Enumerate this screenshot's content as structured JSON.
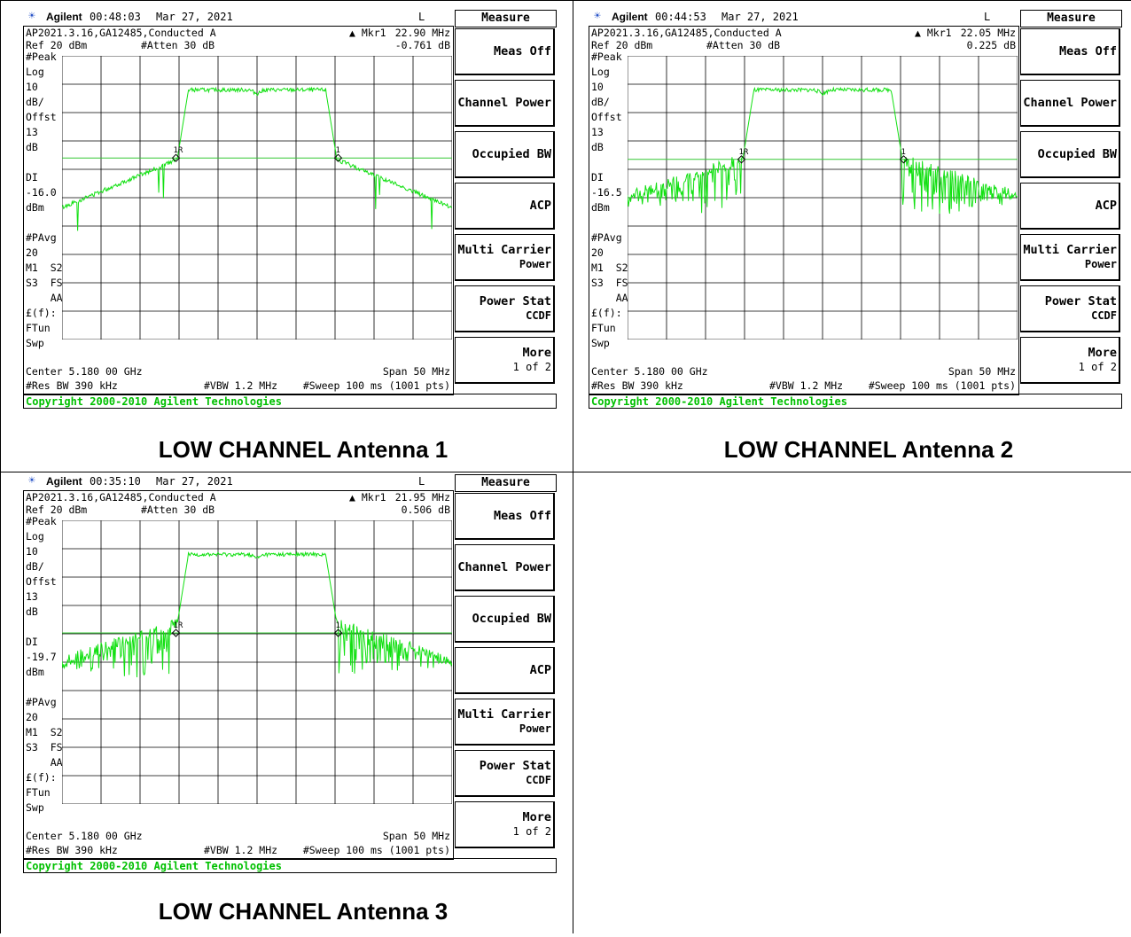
{
  "document": {
    "colors": {
      "trace": "#11e011",
      "display_line": "#33c733",
      "grid": "#000000",
      "copyright": "#00c000",
      "logo": "#2a55c8"
    }
  },
  "panels": [
    {
      "caption": "LOW CHANNEL Antenna 1",
      "title": {
        "logo_icon": "agilent-spark-icon",
        "logo": "☀",
        "brand": "Agilent",
        "time": "00:48:03",
        "date": "Mar 27, 2021",
        "flag": "L"
      },
      "header": {
        "line1_left": "AP2021.3.16,GA12485,Conducted A",
        "mkr_label": "▲ Mkr1",
        "mkr_freq": "22.90 MHz",
        "ref": "Ref 20 dBm",
        "atten": "#Atten 30 dB",
        "mkr_level": "-0.761 dB"
      },
      "left_annotations": [
        "#Peak",
        "Log",
        "10",
        "dB/",
        "Offst",
        "13",
        "dB",
        "",
        "DI",
        "-16.0",
        "dBm",
        "",
        "#PAvg",
        "20",
        "M1  S2",
        "S3  FS",
        "    AA",
        "£(f):",
        "FTun",
        "Swp"
      ],
      "footer": {
        "center": "Center 5.180 00 GHz",
        "span": "Span 50 MHz",
        "res_bw": "#Res BW 390 kHz",
        "vbw": "#VBW 1.2 MHz",
        "sweep": "#Sweep 100 ms (1001 pts)"
      },
      "softkeys": {
        "title": "Measure",
        "items": [
          {
            "label": "Meas Off",
            "sub": ""
          },
          {
            "label": "Channel Power",
            "sub": ""
          },
          {
            "label": "Occupied BW",
            "sub": ""
          },
          {
            "label": "ACP",
            "sub": ""
          },
          {
            "label": "Multi Carrier",
            "sub": "Power"
          },
          {
            "label": "Power Stat",
            "sub": "CCDF"
          },
          {
            "label": "More",
            "sub": "1 of 2"
          }
        ]
      },
      "copyright": "Copyright 2000-2010 Agilent Technologies",
      "markers": {
        "left": "1R",
        "right": "1"
      },
      "dl_level": -16.0,
      "skirt": "smooth"
    },
    {
      "caption": "LOW CHANNEL Antenna 2",
      "title": {
        "logo_icon": "agilent-spark-icon",
        "logo": "☀",
        "brand": "Agilent",
        "time": "00:44:53",
        "date": "Mar 27, 2021",
        "flag": "L"
      },
      "header": {
        "line1_left": "AP2021.3.16,GA12485,Conducted A",
        "mkr_label": "▲ Mkr1",
        "mkr_freq": "22.05 MHz",
        "ref": "Ref 20 dBm",
        "atten": "#Atten 30 dB",
        "mkr_level": "0.225 dB"
      },
      "left_annotations": [
        "#Peak",
        "Log",
        "10",
        "dB/",
        "Offst",
        "13",
        "dB",
        "",
        "DI",
        "-16.5",
        "dBm",
        "",
        "#PAvg",
        "20",
        "M1  S2",
        "S3  FS",
        "    AA",
        "£(f):",
        "FTun",
        "Swp"
      ],
      "footer": {
        "center": "Center 5.180 00 GHz",
        "span": "Span 50 MHz",
        "res_bw": "#Res BW 390 kHz",
        "vbw": "#VBW 1.2 MHz",
        "sweep": "#Sweep 100 ms (1001 pts)"
      },
      "softkeys": {
        "title": "Measure",
        "items": [
          {
            "label": "Meas Off",
            "sub": ""
          },
          {
            "label": "Channel Power",
            "sub": ""
          },
          {
            "label": "Occupied BW",
            "sub": ""
          },
          {
            "label": "ACP",
            "sub": ""
          },
          {
            "label": "Multi Carrier",
            "sub": "Power"
          },
          {
            "label": "Power Stat",
            "sub": "CCDF"
          },
          {
            "label": "More",
            "sub": "1 of 2"
          }
        ]
      },
      "copyright": "Copyright 2000-2010 Agilent Technologies",
      "markers": {
        "left": "1R",
        "right": "1"
      },
      "dl_level": -16.5,
      "skirt": "noisy"
    },
    {
      "caption": "LOW CHANNEL Antenna 3",
      "title": {
        "logo_icon": "agilent-spark-icon",
        "logo": "☀",
        "brand": "Agilent",
        "time": "00:35:10",
        "date": "Mar 27, 2021",
        "flag": "L"
      },
      "header": {
        "line1_left": "AP2021.3.16,GA12485,Conducted A",
        "mkr_label": "▲ Mkr1",
        "mkr_freq": "21.95 MHz",
        "ref": "Ref 20 dBm",
        "atten": "#Atten 30 dB",
        "mkr_level": "0.506 dB"
      },
      "left_annotations": [
        "#Peak",
        "Log",
        "10",
        "dB/",
        "Offst",
        "13",
        "dB",
        "",
        "DI",
        "-19.7",
        "dBm",
        "",
        "#PAvg",
        "20",
        "M1  S2",
        "S3  FS",
        "    AA",
        "£(f):",
        "FTun",
        "Swp"
      ],
      "footer": {
        "center": "Center 5.180 00 GHz",
        "span": "Span 50 MHz",
        "res_bw": "#Res BW 390 kHz",
        "vbw": "#VBW 1.2 MHz",
        "sweep": "#Sweep 100 ms (1001 pts)"
      },
      "softkeys": {
        "title": "Measure",
        "items": [
          {
            "label": "Meas Off",
            "sub": ""
          },
          {
            "label": "Channel Power",
            "sub": ""
          },
          {
            "label": "Occupied BW",
            "sub": ""
          },
          {
            "label": "ACP",
            "sub": ""
          },
          {
            "label": "Multi Carrier",
            "sub": "Power"
          },
          {
            "label": "Power Stat",
            "sub": "CCDF"
          },
          {
            "label": "More",
            "sub": "1 of 2"
          }
        ]
      },
      "copyright": "Copyright 2000-2010 Agilent Technologies",
      "markers": {
        "left": "1R",
        "right": "1"
      },
      "dl_level": -19.7,
      "skirt": "noisy"
    }
  ]
}
